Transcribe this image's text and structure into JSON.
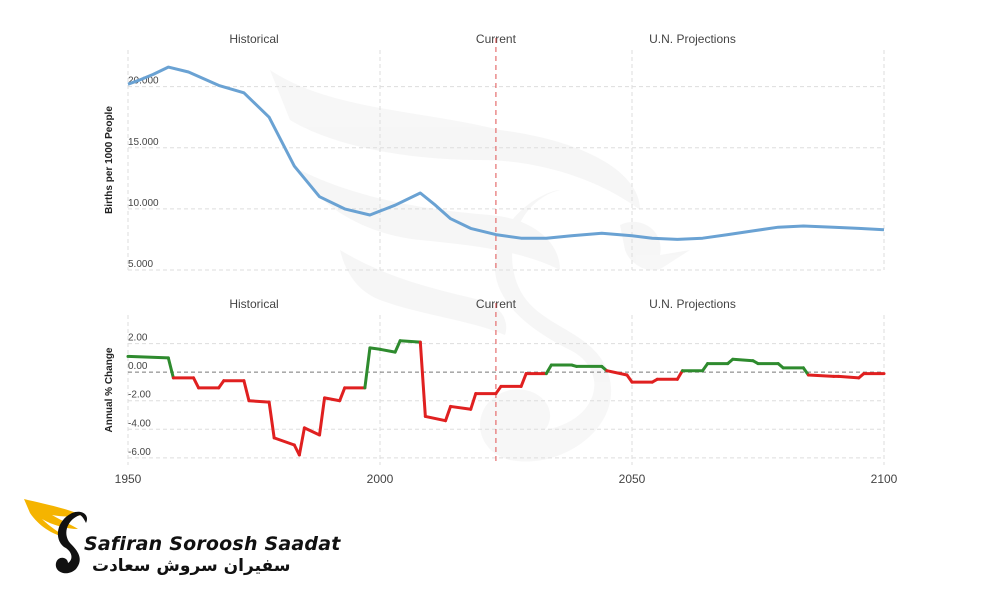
{
  "colors": {
    "line": "#6aa2d3",
    "positive": "#2e8b2e",
    "negative": "#e02020",
    "current_marker": "#e05050",
    "grid": "#dddddd",
    "zero_line": "#777777",
    "text": "#444444",
    "logo_wing": "#f5b400"
  },
  "chart_data": [
    {
      "type": "line",
      "section_labels": [
        "Historical",
        "Current",
        "U.N. Projections"
      ],
      "ylabel": "Births per 1000 People",
      "xlim": [
        1950,
        2100
      ],
      "ylim": [
        5,
        23
      ],
      "yticks": [
        5,
        10,
        15,
        20
      ],
      "ytick_labels": [
        "5.000",
        "10.000",
        "15.000",
        "20.000"
      ],
      "current_year": 2023,
      "grid": true,
      "series": [
        {
          "x": [
            1950,
            1952,
            1955,
            1958,
            1962,
            1968,
            1973,
            1978,
            1983,
            1988,
            1993,
            1998,
            2003,
            2008,
            2011,
            2014,
            2018,
            2023,
            2028,
            2033,
            2038,
            2044,
            2050,
            2054,
            2059,
            2064,
            2069,
            2074,
            2079,
            2084,
            2090,
            2095,
            2100
          ],
          "y": [
            20.2,
            20.5,
            21.0,
            21.6,
            21.2,
            20.1,
            19.5,
            17.5,
            13.5,
            11.0,
            10.0,
            9.5,
            10.3,
            11.3,
            10.3,
            9.2,
            8.4,
            7.9,
            7.6,
            7.6,
            7.8,
            8.0,
            7.8,
            7.6,
            7.5,
            7.6,
            7.9,
            8.2,
            8.5,
            8.6,
            8.5,
            8.4,
            8.3
          ]
        }
      ]
    },
    {
      "type": "line",
      "section_labels": [
        "Historical",
        "Current",
        "U.N. Projections"
      ],
      "ylabel": "Annual % Change",
      "xlim": [
        1950,
        2100
      ],
      "ylim": [
        -6.5,
        4
      ],
      "yticks": [
        2,
        0,
        -2,
        -4,
        -6
      ],
      "ytick_labels": [
        "2.00",
        "0.00",
        "-2.00",
        "-4.00",
        "-6.00"
      ],
      "xticks": [
        1950,
        2000,
        2050,
        2100
      ],
      "current_year": 2023,
      "grid": true,
      "series": [
        {
          "x": [
            1950,
            1958,
            1959,
            1963,
            1964,
            1968,
            1969,
            1973,
            1974,
            1978,
            1979,
            1983,
            1984,
            1985,
            1988,
            1989,
            1992,
            1993,
            1997,
            1998,
            2000,
            2003,
            2004,
            2008,
            2009,
            2013,
            2014,
            2018,
            2019,
            2023,
            2024,
            2028,
            2029,
            2033,
            2034,
            2038,
            2039,
            2044,
            2045,
            2049,
            2050,
            2054,
            2055,
            2059,
            2060,
            2064,
            2065,
            2069,
            2070,
            2074,
            2075,
            2079,
            2080,
            2084,
            2085,
            2090,
            2091,
            2095,
            2096,
            2100
          ],
          "y": [
            1.1,
            1.0,
            -0.4,
            -0.4,
            -1.1,
            -1.1,
            -0.6,
            -0.6,
            -2.0,
            -2.1,
            -4.6,
            -5.1,
            -5.8,
            -3.9,
            -4.4,
            -1.8,
            -2.0,
            -1.1,
            -1.1,
            1.7,
            1.6,
            1.4,
            2.2,
            2.1,
            -3.1,
            -3.4,
            -2.4,
            -2.6,
            -1.5,
            -1.5,
            -1.0,
            -1.0,
            -0.1,
            -0.1,
            0.5,
            0.5,
            0.4,
            0.4,
            0.1,
            -0.2,
            -0.7,
            -0.7,
            -0.5,
            -0.5,
            0.1,
            0.1,
            0.6,
            0.6,
            0.9,
            0.8,
            0.6,
            0.6,
            0.3,
            0.3,
            -0.2,
            -0.3,
            -0.3,
            -0.4,
            -0.1,
            -0.1
          ]
        }
      ]
    }
  ],
  "brand": {
    "name_en": "Safiran Soroosh Saadat",
    "name_fa": "سفیران سروش سعادت",
    "icon": "swan-wing-logo"
  }
}
